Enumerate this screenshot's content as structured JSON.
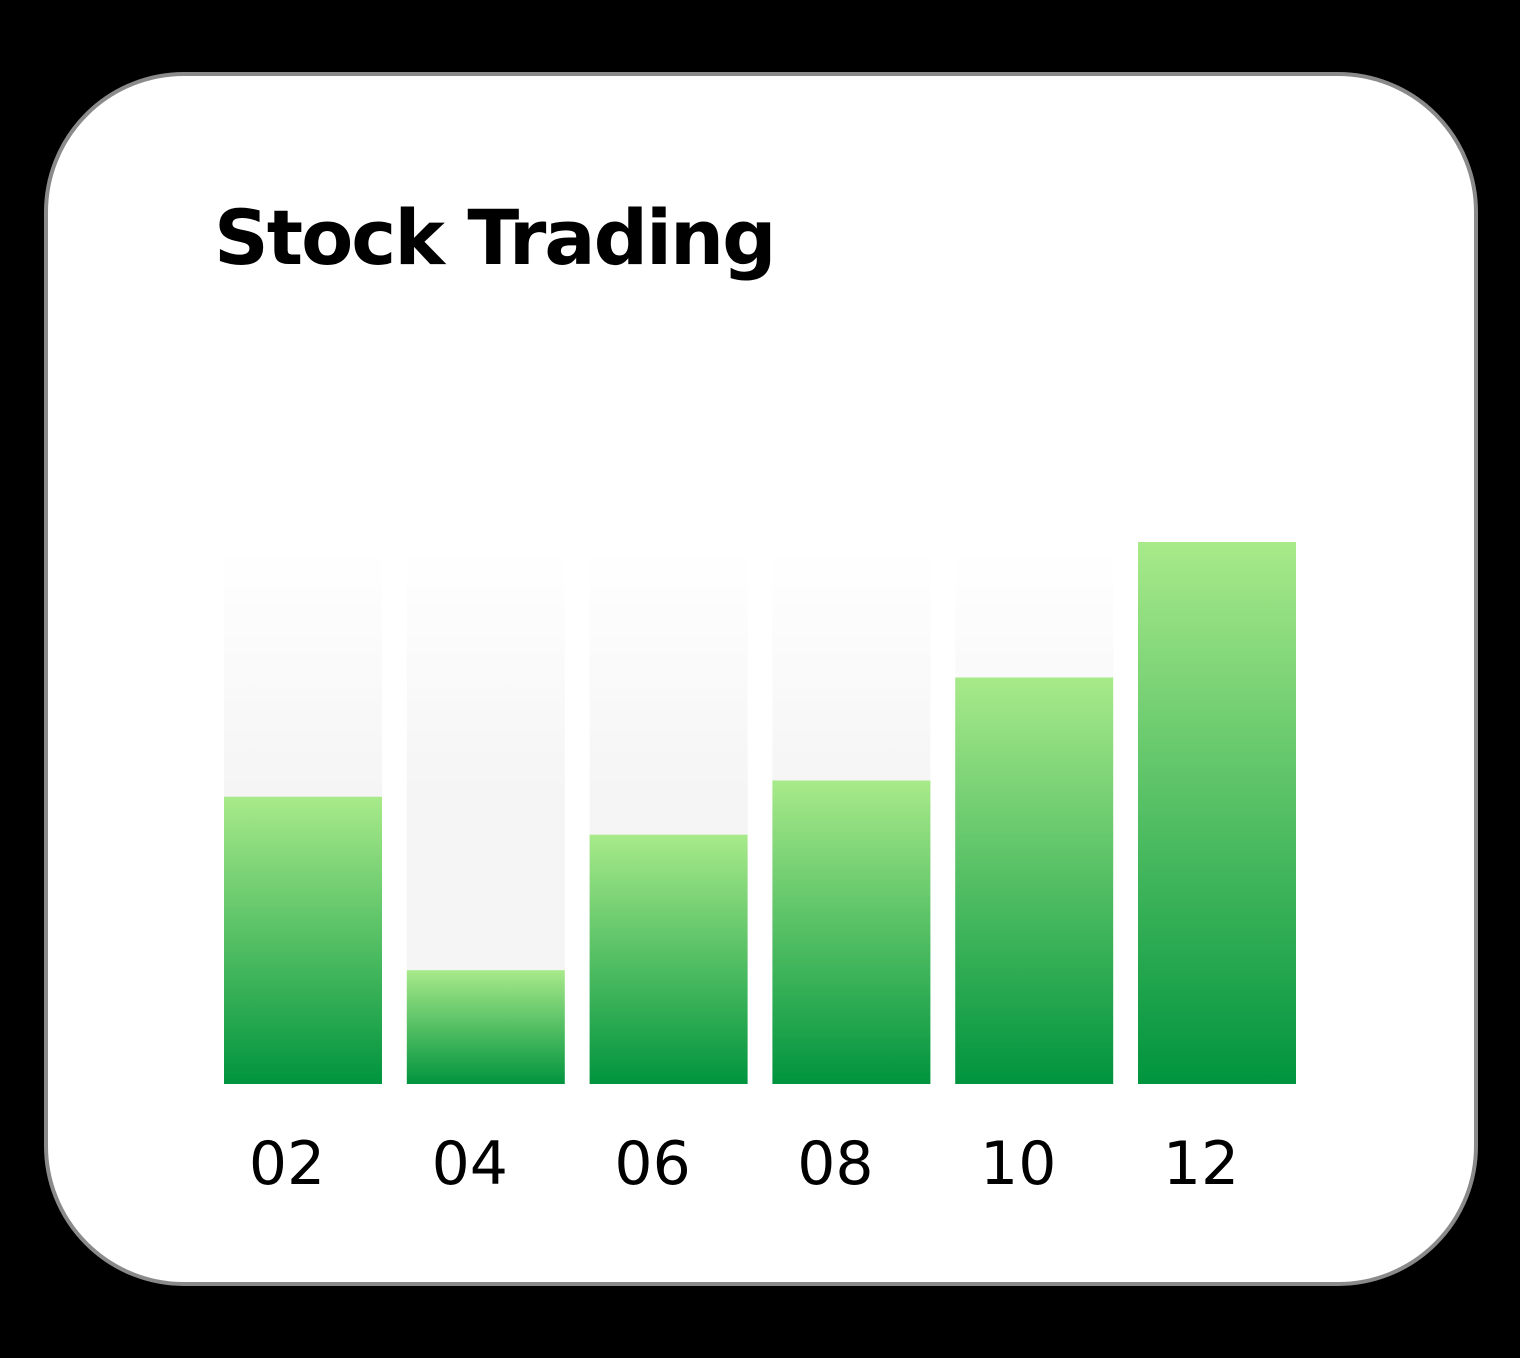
{
  "chart_data": {
    "type": "bar",
    "title": "Stock Trading",
    "categories": [
      "02",
      "04",
      "06",
      "08",
      "10",
      "12"
    ],
    "values": [
      53,
      21,
      46,
      56,
      75,
      100
    ],
    "ylim": [
      0,
      100
    ],
    "grid": false,
    "legend": "none",
    "colors": {
      "bar_top": "#a8ea8a",
      "bar_bottom": "#00943e",
      "track_top": "#ffffff",
      "track_bottom": "#f5f5f5"
    }
  }
}
